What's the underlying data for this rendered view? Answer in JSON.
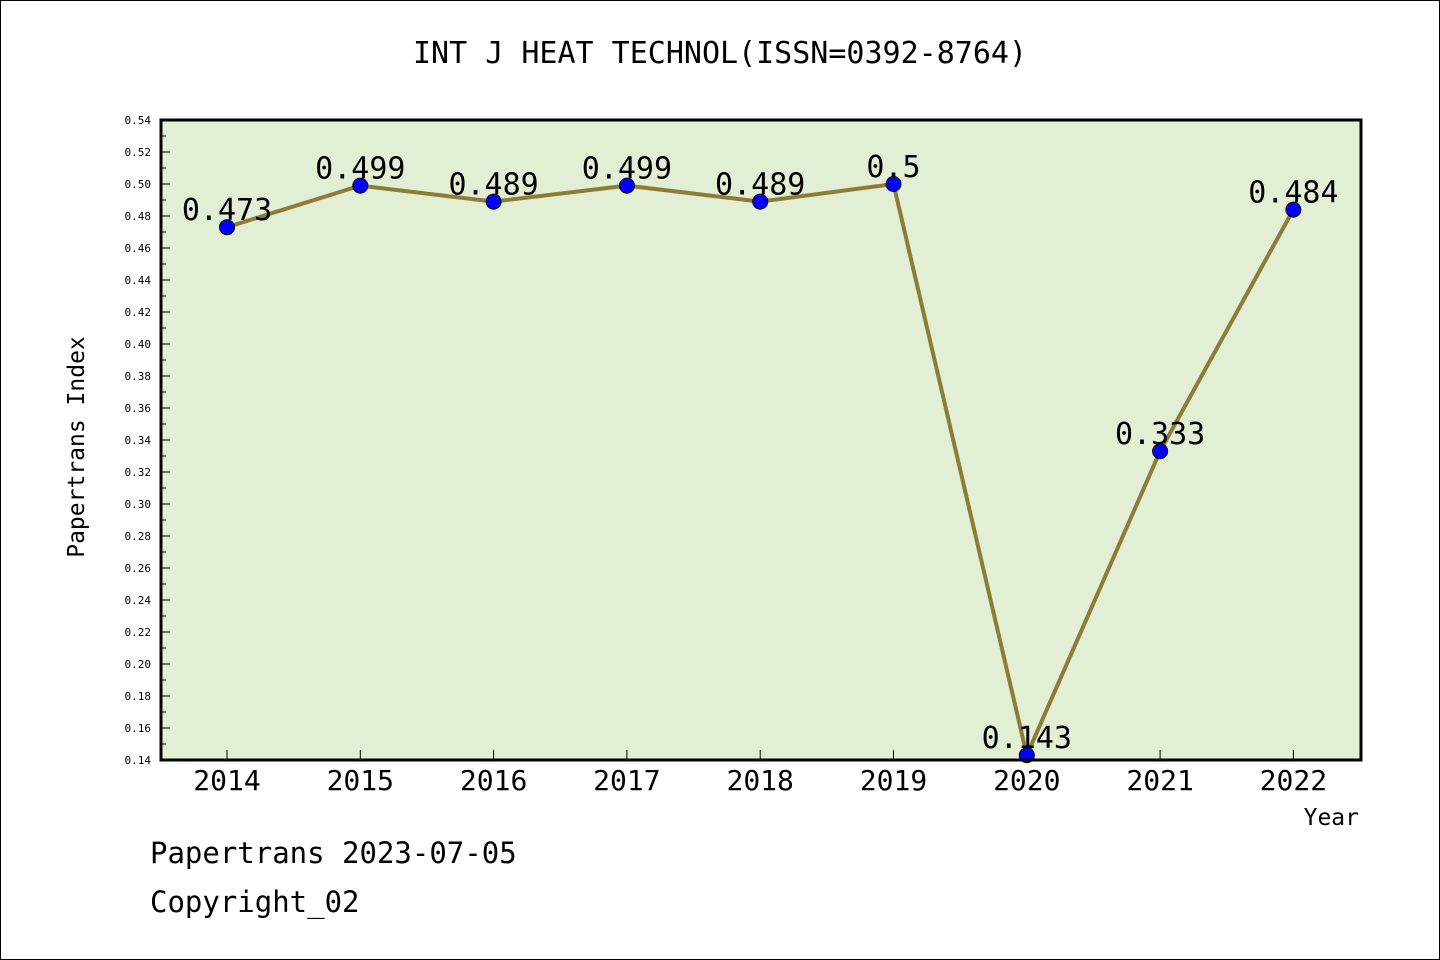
{
  "chart_data": {
    "type": "line",
    "title": "INT J HEAT TECHNOL(ISSN=0392-8764)",
    "xlabel": "Year",
    "ylabel": "Papertrans Index",
    "categories": [
      "2014",
      "2015",
      "2016",
      "2017",
      "2018",
      "2019",
      "2020",
      "2021",
      "2022"
    ],
    "series": [
      {
        "values": [
          0.473,
          0.499,
          0.489,
          0.499,
          0.489,
          0.5,
          0.143,
          0.333,
          0.484
        ],
        "data_labels": [
          "0.473",
          "0.499",
          "0.489",
          "0.499",
          "0.489",
          "0.5",
          "0.143",
          "0.333",
          "0.484"
        ]
      }
    ],
    "ylim": [
      0.14,
      0.54
    ],
    "y_ticks": [
      "0.14",
      "0.16",
      "0.18",
      "0.20",
      "0.22",
      "0.24",
      "0.26",
      "0.28",
      "0.30",
      "0.32",
      "0.34",
      "0.36",
      "0.38",
      "0.40",
      "0.42",
      "0.44",
      "0.46",
      "0.48",
      "0.50",
      "0.52",
      "0.54"
    ],
    "grid": false,
    "colors": {
      "plot_bg": "#e2efd5",
      "line": "#8b7d36",
      "marker": "#0000ff"
    }
  },
  "footer": {
    "line1": "Papertrans 2023-07-05",
    "line2": "Copyright_02"
  }
}
